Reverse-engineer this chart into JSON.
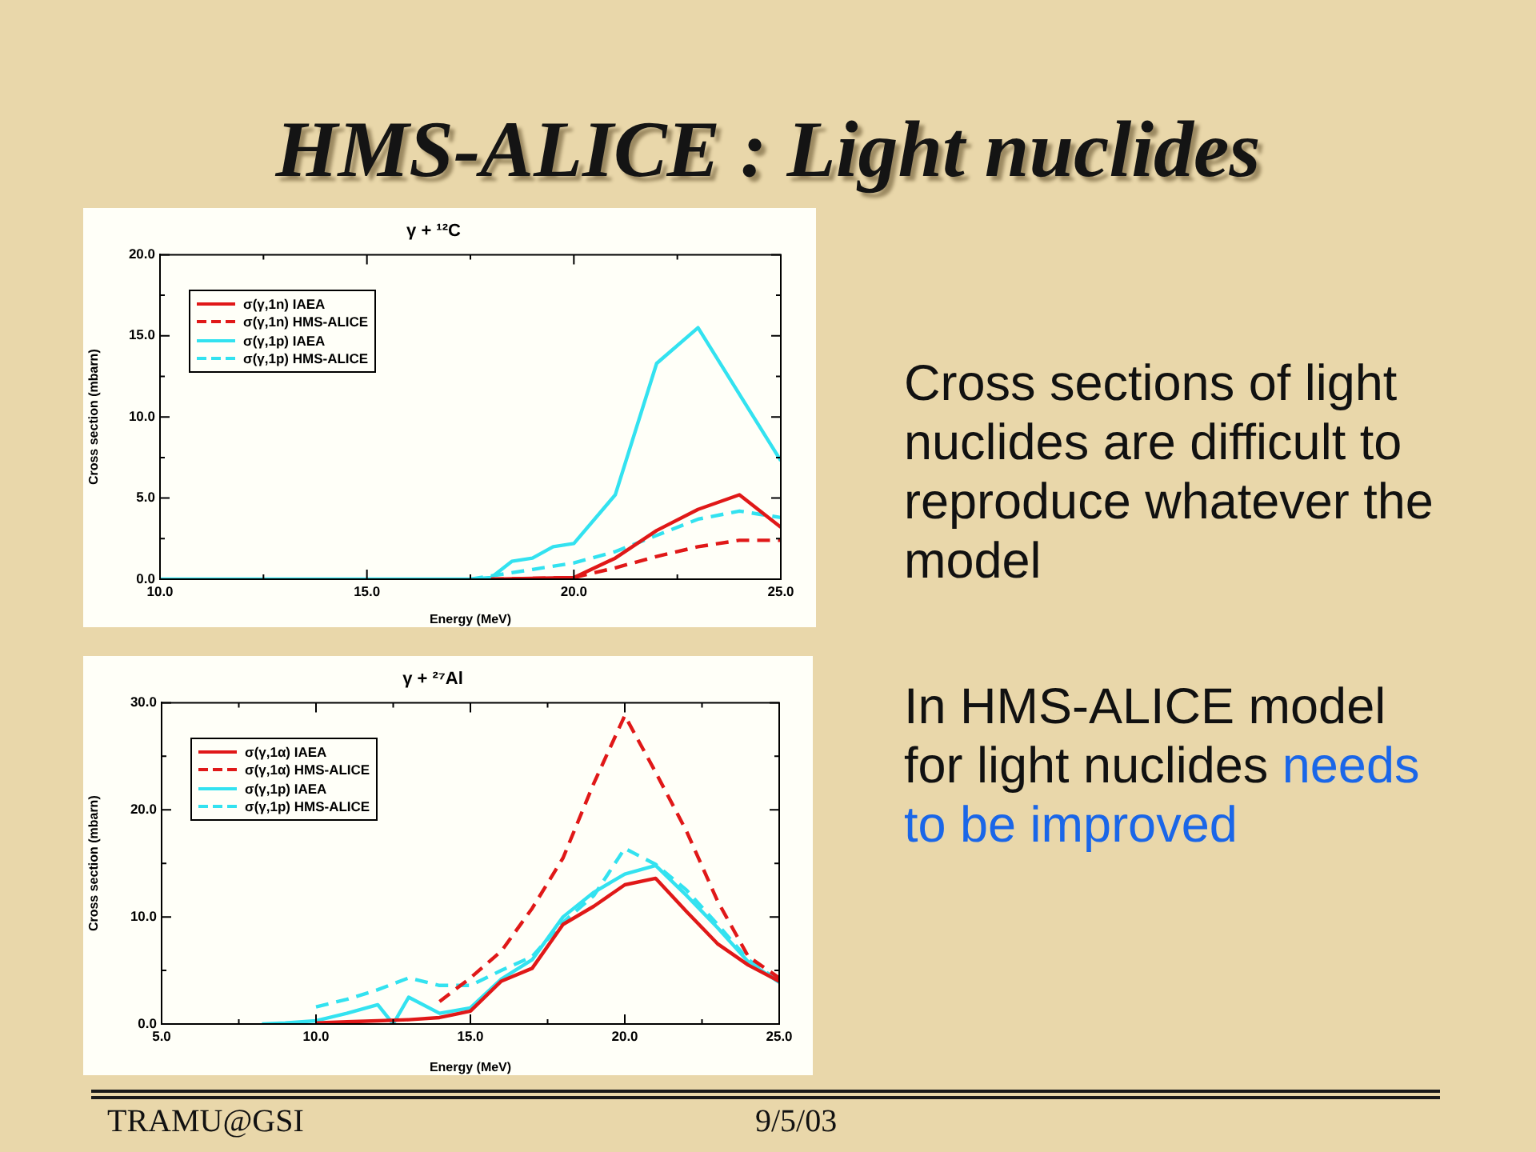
{
  "chart_data": [
    {
      "type": "other",
      "title": "HMS-ALICE : Light nuclides",
      "annotations": [
        "Cross sections of light nuclides are difficult to reproduce whatever the model",
        "In HMS-ALICE model for light nuclides",
        "needs",
        "to be improved",
        "TRAMU@GSI",
        "9/5/03"
      ]
    },
    {
      "type": "line",
      "title": "γ + ¹²C",
      "xlabel": "Energy (MeV)",
      "ylabel": "Cross section (mbarn)",
      "xlim": [
        10,
        25
      ],
      "ylim": [
        0,
        20
      ],
      "xticks": [
        {
          "value": 10,
          "label": "10.0"
        },
        {
          "value": 12.5,
          "label": null
        },
        {
          "value": 15,
          "label": "15.0"
        },
        {
          "value": 17.5,
          "label": null
        },
        {
          "value": 20,
          "label": "20.0"
        },
        {
          "value": 22.5,
          "label": null
        },
        {
          "value": 25,
          "label": "25.0"
        }
      ],
      "yticks": [
        {
          "value": 0,
          "label": "0.0"
        },
        {
          "value": 2.5,
          "label": null
        },
        {
          "value": 5,
          "label": "5.0"
        },
        {
          "value": 7.5,
          "label": null
        },
        {
          "value": 10,
          "label": "10.0"
        },
        {
          "value": 12.5,
          "label": null
        },
        {
          "value": 15,
          "label": "15.0"
        },
        {
          "value": 17.5,
          "label": null
        },
        {
          "value": 20,
          "label": "20.0"
        }
      ],
      "legend": "top left",
      "marker": "none",
      "grid": false,
      "series": [
        {
          "name": "σ(γ,1n) IAEA",
          "color": "#e01818",
          "line_style": "solid",
          "x": [
            18,
            20,
            21,
            22,
            23,
            24,
            25
          ],
          "values": [
            0,
            0.1,
            1.3,
            3.0,
            4.3,
            5.2,
            3.2
          ]
        },
        {
          "name": "σ(γ,1n) HMS-ALICE",
          "color": "#e01818",
          "line_style": "dashed",
          "x": [
            18,
            20,
            21,
            22,
            23,
            24,
            25
          ],
          "values": [
            0,
            0.1,
            0.7,
            1.4,
            2.0,
            2.4,
            2.4
          ]
        },
        {
          "name": "σ(γ,1p) IAEA",
          "color": "#33e2f0",
          "line_style": "solid",
          "x": [
            10,
            17.5,
            18,
            18.5,
            19,
            19.5,
            20,
            21,
            22,
            23,
            25
          ],
          "values": [
            0,
            0,
            0.1,
            1.1,
            1.3,
            2.0,
            2.2,
            5.2,
            13.3,
            15.5,
            7.3
          ]
        },
        {
          "name": "σ(γ,1p) HMS-ALICE",
          "color": "#33e2f0",
          "line_style": "dashed",
          "x": [
            17.5,
            18,
            18.5,
            19,
            20,
            21,
            22,
            23,
            24,
            25
          ],
          "values": [
            0,
            0.2,
            0.4,
            0.6,
            1.0,
            1.7,
            2.7,
            3.7,
            4.2,
            3.8
          ]
        }
      ]
    },
    {
      "type": "line",
      "title": "γ + ²⁷Al",
      "xlabel": "Energy (MeV)",
      "ylabel": "Cross section (mbarn)",
      "xlim": [
        5,
        25
      ],
      "ylim": [
        0,
        30
      ],
      "xticks": [
        {
          "value": 5,
          "label": "5.0"
        },
        {
          "value": 7.5,
          "label": null
        },
        {
          "value": 10,
          "label": "10.0"
        },
        {
          "value": 12.5,
          "label": null
        },
        {
          "value": 15,
          "label": "15.0"
        },
        {
          "value": 17.5,
          "label": null
        },
        {
          "value": 20,
          "label": "20.0"
        },
        {
          "value": 22.5,
          "label": null
        },
        {
          "value": 25,
          "label": "25.0"
        }
      ],
      "yticks": [
        {
          "value": 0,
          "label": "0.0"
        },
        {
          "value": 5,
          "label": null
        },
        {
          "value": 10,
          "label": "10.0"
        },
        {
          "value": 15,
          "label": null
        },
        {
          "value": 20,
          "label": "20.0"
        },
        {
          "value": 25,
          "label": null
        },
        {
          "value": 30,
          "label": "30.0"
        }
      ],
      "legend": "top left",
      "marker": "none",
      "grid": false,
      "series": [
        {
          "name": "σ(γ,1α) IAEA",
          "color": "#e01818",
          "line_style": "solid",
          "x": [
            10,
            11,
            12,
            13,
            14,
            15,
            16,
            17,
            18,
            19,
            20,
            21,
            22,
            23,
            24,
            25
          ],
          "values": [
            0.1,
            0.2,
            0.3,
            0.4,
            0.6,
            1.2,
            4.0,
            5.2,
            9.3,
            11,
            13,
            13.6,
            10.5,
            7.5,
            5.5,
            4.0
          ]
        },
        {
          "name": "σ(γ,1α) HMS-ALICE",
          "color": "#e01818",
          "line_style": "dashed",
          "x": [
            14,
            15,
            16,
            17,
            18,
            19,
            20,
            21,
            22,
            23,
            24,
            25
          ],
          "values": [
            2.1,
            4.3,
            6.8,
            10.8,
            15.5,
            22.5,
            28.8,
            23.5,
            18,
            11.5,
            6.3,
            4.3
          ]
        },
        {
          "name": "σ(γ,1p) IAEA",
          "color": "#33e2f0",
          "line_style": "solid",
          "x": [
            8.25,
            9,
            10,
            11,
            12,
            12.5,
            13,
            14,
            15,
            16,
            17,
            18,
            19,
            20,
            21,
            22,
            23,
            24,
            25
          ],
          "values": [
            0,
            0.1,
            0.3,
            1.0,
            1.8,
            0,
            2.5,
            1.0,
            1.5,
            4.2,
            6.0,
            10,
            12.3,
            14,
            14.8,
            12,
            9,
            5.8,
            3.9
          ]
        },
        {
          "name": "σ(γ,1p) HMS-ALICE",
          "color": "#33e2f0",
          "line_style": "dashed",
          "x": [
            10,
            11,
            12,
            13,
            14,
            15,
            16,
            17,
            18,
            19,
            20,
            21,
            22,
            23,
            24,
            25
          ],
          "values": [
            1.6,
            2.3,
            3.2,
            4.3,
            3.6,
            3.6,
            5.0,
            6.3,
            9.5,
            12,
            16.4,
            14.9,
            12.5,
            9.3,
            6.0,
            4.0
          ]
        }
      ]
    }
  ]
}
